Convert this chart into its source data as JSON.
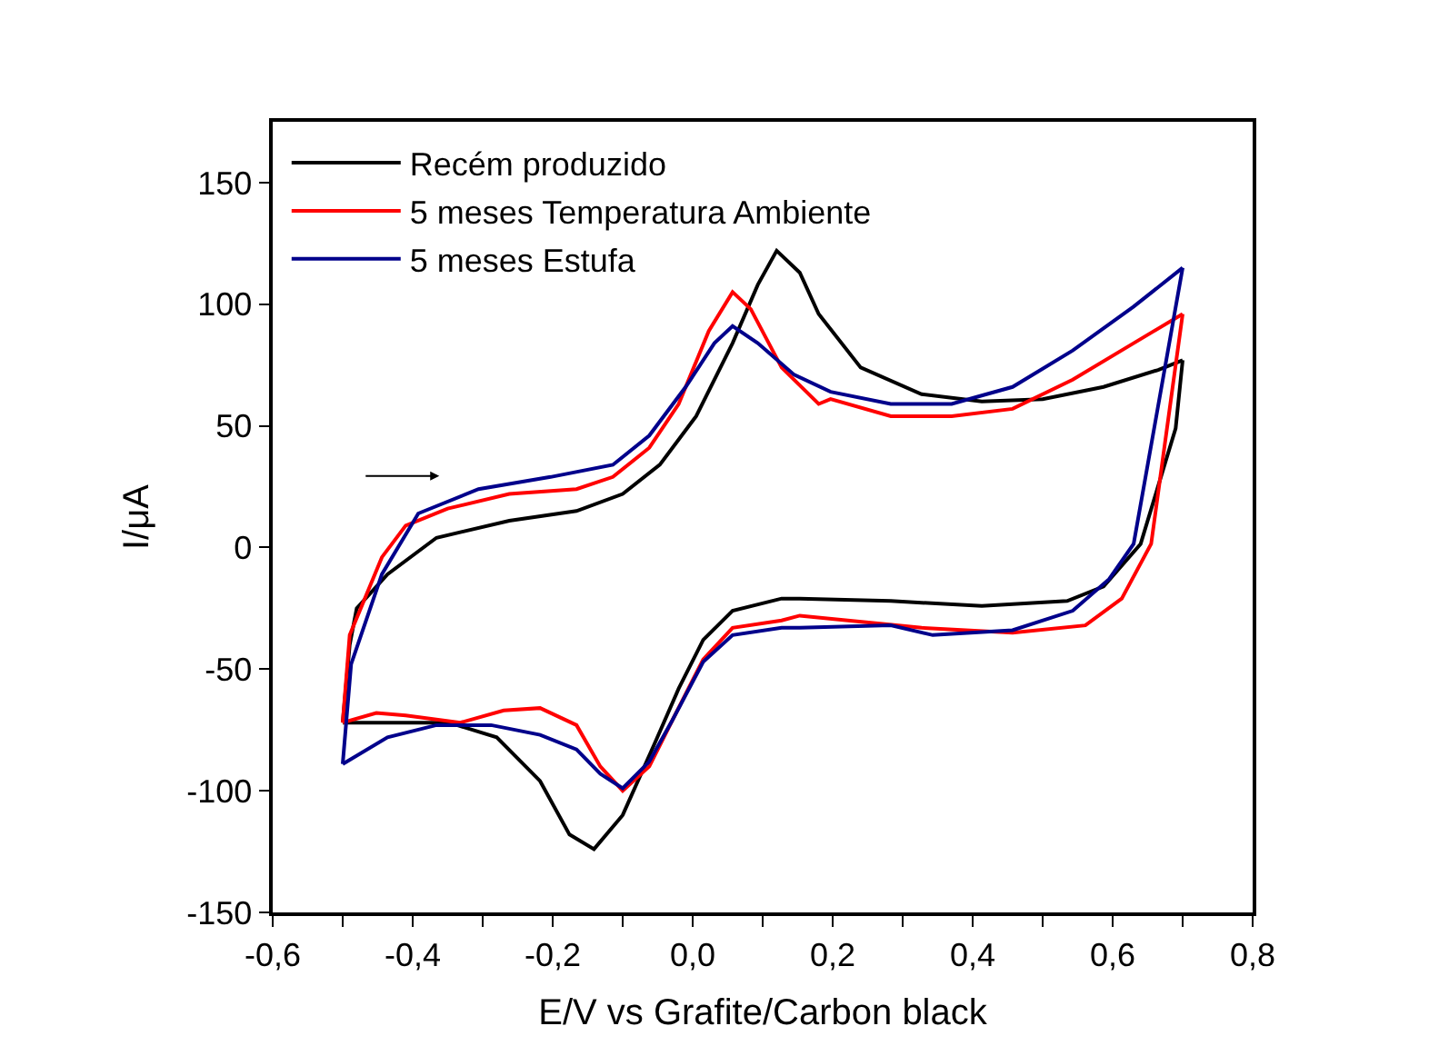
{
  "chart_data": {
    "type": "line",
    "xlabel": "E/V vs Grafite/Carbon black",
    "ylabel": "I/μA",
    "xlim": [
      -0.6,
      0.8
    ],
    "ylim": [
      -150,
      175
    ],
    "xticks": [
      {
        "value": -0.6,
        "label": "-0,6"
      },
      {
        "value": -0.5,
        "label": null
      },
      {
        "value": -0.4,
        "label": "-0,4"
      },
      {
        "value": -0.3,
        "label": null
      },
      {
        "value": -0.2,
        "label": "-0,2"
      },
      {
        "value": -0.1,
        "label": null
      },
      {
        "value": 0.0,
        "label": "0,0"
      },
      {
        "value": 0.1,
        "label": null
      },
      {
        "value": 0.2,
        "label": "0,2"
      },
      {
        "value": 0.3,
        "label": null
      },
      {
        "value": 0.4,
        "label": "0,4"
      },
      {
        "value": 0.5,
        "label": null
      },
      {
        "value": 0.6,
        "label": "0,6"
      },
      {
        "value": 0.7,
        "label": null
      },
      {
        "value": 0.8,
        "label": "0,8"
      }
    ],
    "yticks": [
      -150,
      -100,
      -50,
      0,
      50,
      100,
      150
    ],
    "legend": "top left",
    "marker": "none",
    "line_style": "solid",
    "series": [
      {
        "name": "Recém produzido",
        "color": "#000000",
        "x": [
          -0.5,
          -0.49,
          -0.48,
          -0.436,
          -0.366,
          -0.262,
          -0.166,
          -0.1,
          -0.047,
          0.005,
          0.057,
          0.093,
          0.12,
          0.153,
          0.18,
          0.24,
          0.327,
          0.413,
          0.5,
          0.587,
          0.665,
          0.7
        ],
        "values": [
          -72,
          -40,
          -25,
          -11,
          4,
          11,
          15,
          22,
          34,
          54,
          84,
          108,
          122,
          113,
          96,
          74,
          63,
          60,
          61,
          66,
          73,
          77
        ]
      },
      {
        "color": "#000000",
        "x": [
          0.7,
          0.69,
          0.64,
          0.587,
          0.535,
          0.413,
          0.283,
          0.153,
          0.127,
          0.057,
          0.015,
          -0.02,
          -0.055,
          -0.1,
          -0.141,
          -0.176,
          -0.218,
          -0.28,
          -0.348,
          -0.436,
          -0.5
        ],
        "values": [
          77,
          49,
          1.5,
          -16,
          -22,
          -24,
          -22,
          -21,
          -21,
          -26,
          -38,
          -58,
          -81,
          -110,
          -124,
          -118,
          -96,
          -78,
          -72,
          -72,
          -72
        ]
      },
      {
        "name": "5 meses Temperatura Ambiente",
        "color": "#ff0000",
        "x": [
          -0.5,
          -0.49,
          -0.444,
          -0.41,
          -0.35,
          -0.262,
          -0.166,
          -0.114,
          -0.062,
          -0.02,
          0.023,
          0.057,
          0.083,
          0.127,
          0.18,
          0.197,
          0.283,
          0.37,
          0.457,
          0.543,
          0.63,
          0.7
        ],
        "values": [
          -72,
          -36,
          -4,
          9,
          16,
          22,
          24,
          29,
          41,
          59,
          89,
          105,
          98,
          74,
          59,
          61,
          54,
          54,
          57,
          69,
          84,
          96
        ]
      },
      {
        "color": "#ff0000",
        "x": [
          0.7,
          0.655,
          0.613,
          0.561,
          0.457,
          0.327,
          0.153,
          0.127,
          0.057,
          0.015,
          -0.029,
          -0.062,
          -0.1,
          -0.132,
          -0.166,
          -0.218,
          -0.27,
          -0.332,
          -0.41,
          -0.452,
          -0.5
        ],
        "values": [
          96,
          1.5,
          -21,
          -32,
          -35,
          -33,
          -28,
          -30,
          -33,
          -46,
          -71,
          -90,
          -100,
          -90,
          -73,
          -66,
          -67,
          -72,
          -69,
          -68,
          -72
        ]
      },
      {
        "name": "5 meses Estufa",
        "color": "#00008b",
        "x": [
          -0.5,
          -0.488,
          -0.444,
          -0.392,
          -0.306,
          -0.203,
          -0.114,
          -0.062,
          -0.01,
          0.031,
          0.057,
          0.093,
          0.145,
          0.197,
          0.283,
          0.37,
          0.457,
          0.543,
          0.63,
          0.7
        ],
        "values": [
          -89,
          -48,
          -11,
          14,
          24,
          29,
          34,
          46,
          66,
          84,
          91,
          84,
          71,
          64,
          59,
          59,
          66,
          81,
          99,
          115
        ]
      },
      {
        "color": "#00008b",
        "x": [
          0.7,
          0.63,
          0.595,
          0.543,
          0.457,
          0.343,
          0.283,
          0.153,
          0.127,
          0.057,
          0.015,
          -0.029,
          -0.062,
          -0.1,
          -0.132,
          -0.166,
          -0.218,
          -0.288,
          -0.366,
          -0.436,
          -0.5
        ],
        "values": [
          115,
          1.5,
          -13,
          -26,
          -34,
          -36,
          -32,
          -33,
          -33,
          -36,
          -47,
          -71,
          -88,
          -99,
          -93,
          -83,
          -77,
          -73,
          -73,
          -78,
          -89
        ]
      }
    ]
  }
}
